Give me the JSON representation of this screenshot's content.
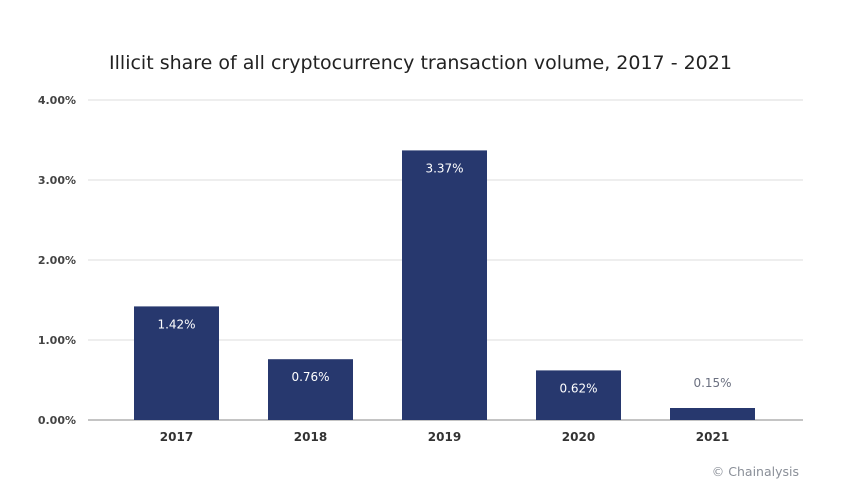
{
  "chart_data": {
    "type": "bar",
    "title": "Illicit share of all cryptocurrency transaction volume, 2017 - 2021",
    "categories": [
      "2017",
      "2018",
      "2019",
      "2020",
      "2021"
    ],
    "values": [
      1.42,
      0.76,
      3.37,
      0.62,
      0.15
    ],
    "data_labels": [
      "1.42%",
      "0.76%",
      "3.37%",
      "0.62%",
      "0.15%"
    ],
    "xlabel": "",
    "ylabel": "",
    "ylim": [
      0,
      4
    ],
    "yticks": [
      "0.00%",
      "1.00%",
      "2.00%",
      "3.00%",
      "4.00%"
    ],
    "grid": true,
    "legend": "none",
    "colors": {
      "bar": "#27386e",
      "grid": "#dcdcdc",
      "axis": "#888888",
      "label_inside": "#ffffff",
      "label_outside": "#6b7080"
    }
  },
  "credit": "© Chainalysis"
}
